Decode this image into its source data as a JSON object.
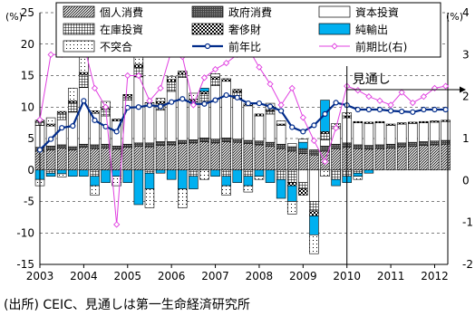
{
  "chart_data": {
    "type": "bar",
    "x": [
      2003.0,
      2003.25,
      2003.5,
      2003.75,
      2004.0,
      2004.25,
      2004.5,
      2004.75,
      2005.0,
      2005.25,
      2005.5,
      2005.75,
      2006.0,
      2006.25,
      2006.5,
      2006.75,
      2007.0,
      2007.25,
      2007.5,
      2007.75,
      2008.0,
      2008.25,
      2008.5,
      2008.75,
      2009.0,
      2009.25,
      2009.5,
      2009.75,
      2010.0,
      2010.25,
      2010.5,
      2010.75,
      2011.0,
      2011.25,
      2011.5,
      2011.75,
      2012.0,
      2012.25
    ],
    "xlim": [
      2003,
      2012.3
    ],
    "xticks": [
      "2003",
      "2004",
      "2005",
      "2006",
      "2007",
      "2008",
      "2009",
      "2010",
      "2011",
      "2012"
    ],
    "ylim_left": [
      -15,
      25
    ],
    "yticks_left": [
      "25",
      "20",
      "15",
      "10",
      "5",
      "0",
      "-5",
      "-10",
      "-15"
    ],
    "ylim_right": [
      -2,
      4
    ],
    "yticks_right": [
      "4",
      "3",
      "2",
      "1",
      "0",
      "-1",
      "-2"
    ],
    "unit_left": "(%)",
    "unit_right": "(%)",
    "forecast_start": 2010.0,
    "forecast_label": "見通し",
    "grid": true,
    "legend_position": "top",
    "series": [
      {
        "name": "個人消費",
        "kind": "bar",
        "pattern": "diag",
        "color": "#000000",
        "values": [
          3.0,
          3.2,
          3.5,
          3.2,
          3.6,
          3.4,
          3.5,
          3.3,
          3.6,
          3.8,
          3.7,
          3.9,
          4.0,
          4.2,
          4.3,
          4.5,
          4.3,
          4.5,
          4.4,
          4.2,
          4.0,
          3.8,
          3.4,
          3.0,
          2.6,
          2.4,
          3.0,
          3.4,
          3.6,
          3.4,
          3.3,
          3.4,
          3.5,
          3.7,
          3.8,
          3.9,
          4.0,
          4.1
        ]
      },
      {
        "name": "政府消費",
        "kind": "bar",
        "pattern": "dense",
        "color": "#555555",
        "values": [
          0.6,
          0.6,
          0.5,
          0.5,
          0.5,
          0.6,
          0.6,
          0.5,
          0.5,
          0.5,
          0.6,
          0.6,
          0.5,
          0.5,
          0.5,
          0.6,
          0.6,
          0.6,
          0.5,
          0.5,
          0.6,
          0.6,
          0.7,
          0.7,
          0.8,
          0.8,
          0.8,
          0.7,
          0.7,
          0.6,
          0.6,
          0.6,
          0.6,
          0.6,
          0.6,
          0.6,
          0.6,
          0.6
        ]
      },
      {
        "name": "資本投資",
        "kind": "bar",
        "pattern": "white",
        "color": "#ffffff",
        "values": [
          3.5,
          3.2,
          4.0,
          5.5,
          9.0,
          5.0,
          4.5,
          4.0,
          7.0,
          10.5,
          6.0,
          5.0,
          8.0,
          10.0,
          6.0,
          5.5,
          8.5,
          9.0,
          6.5,
          5.5,
          4.0,
          4.5,
          3.0,
          0.5,
          -2.0,
          -5.0,
          1.0,
          2.5,
          4.0,
          3.5,
          3.5,
          3.5,
          3.0,
          3.0,
          3.0,
          3.0,
          3.0,
          3.0
        ]
      },
      {
        "name": "在庫投資",
        "kind": "bar",
        "pattern": "grid",
        "color": "#000000",
        "values": [
          0.5,
          -0.5,
          1.0,
          1.5,
          2.0,
          -1.0,
          1.0,
          0.0,
          0.5,
          1.5,
          -0.5,
          1.0,
          1.5,
          0.5,
          -1.0,
          1.5,
          1.0,
          -1.0,
          1.0,
          -1.0,
          0.0,
          0.5,
          -1.5,
          -2.0,
          -1.0,
          -1.5,
          1.0,
          -1.5,
          -1.0,
          -0.5,
          0.0,
          0.0,
          0.0,
          0.0,
          0.0,
          0.0,
          0.0,
          0.0
        ]
      },
      {
        "name": "奢侈財",
        "kind": "bar",
        "pattern": "checker",
        "color": "#000000",
        "values": [
          0.3,
          0.3,
          0.3,
          0.3,
          0.4,
          0.4,
          0.3,
          0.3,
          0.4,
          0.5,
          0.4,
          0.4,
          0.4,
          0.5,
          0.4,
          0.4,
          0.4,
          0.4,
          0.4,
          0.3,
          0.3,
          0.2,
          0.2,
          -0.5,
          -1.0,
          -0.8,
          0.3,
          0.3,
          0.3,
          0.2,
          0.2,
          0.2,
          0.2,
          0.2,
          0.2,
          0.2,
          0.2,
          0.2
        ]
      },
      {
        "name": "純輸出",
        "kind": "bar",
        "pattern": "cyan",
        "color": "#00b0f0",
        "values": [
          -1.5,
          -0.5,
          -0.6,
          -1.0,
          -1.0,
          -1.5,
          -2.0,
          -1.0,
          -2.0,
          -5.5,
          -2.5,
          -0.5,
          -1.5,
          -3.0,
          -2.0,
          0.5,
          -1.0,
          -1.5,
          -2.0,
          -1.5,
          -1.0,
          -2.0,
          -3.0,
          -2.5,
          1.0,
          -3.0,
          5.0,
          -1.0,
          -1.0,
          -0.5,
          -0.5,
          0.0,
          0.0,
          0.0,
          0.0,
          0.0,
          0.0,
          0.0
        ]
      },
      {
        "name": "不突合",
        "kind": "bar",
        "pattern": "dots",
        "color": "#000000",
        "values": [
          -1.0,
          1.0,
          -0.5,
          2.0,
          2.5,
          -1.5,
          1.0,
          -1.5,
          0.0,
          2.0,
          -3.0,
          0.5,
          0.5,
          -3.0,
          1.0,
          -1.5,
          0.5,
          -1.5,
          0.0,
          -1.0,
          -0.5,
          1.0,
          0.5,
          -2.0,
          0.5,
          -3.0,
          -1.0,
          0.5,
          0.5,
          -0.5,
          0.0,
          0.0,
          0.0,
          0.0,
          0.0,
          0.0,
          0.0,
          0.0
        ]
      },
      {
        "name": "前年比",
        "kind": "line",
        "axis": "left",
        "color": "#002b8a",
        "values": [
          3.2,
          4.9,
          6.7,
          7.0,
          11.0,
          7.9,
          6.9,
          6.1,
          9.9,
          10.0,
          10.3,
          10.1,
          10.8,
          11.3,
          10.5,
          10.5,
          11.1,
          11.9,
          11.5,
          10.6,
          10.6,
          10.1,
          9.4,
          6.8,
          6.1,
          7.1,
          8.9,
          10.7,
          10.3,
          9.6,
          9.6,
          9.6,
          9.4,
          9.3,
          9.2,
          9.6,
          9.6,
          9.6
        ]
      },
      {
        "name": "前期比(右)",
        "kind": "line",
        "axis": "right",
        "color": "#e040e0",
        "values": [
          1.45,
          3.0,
          3.0,
          3.15,
          3.25,
          2.2,
          1.75,
          -1.05,
          2.5,
          2.5,
          1.9,
          2.2,
          3.1,
          2.95,
          1.8,
          2.45,
          2.65,
          2.8,
          3.0,
          3.15,
          2.7,
          2.3,
          1.8,
          2.2,
          1.5,
          0.95,
          0.45,
          1.25,
          2.25,
          2.15,
          2.0,
          1.9,
          1.8,
          2.1,
          1.85,
          2.0,
          2.2,
          2.25
        ]
      }
    ]
  },
  "source_note": "(出所) CEIC、見通しは第一生命経済研究所"
}
